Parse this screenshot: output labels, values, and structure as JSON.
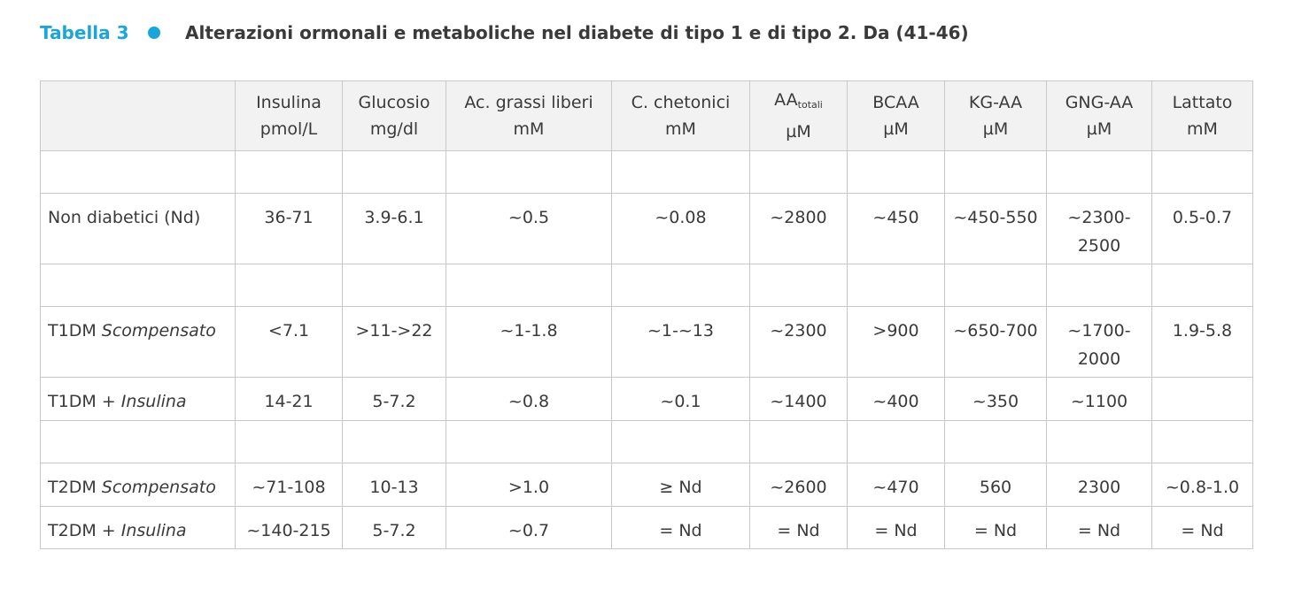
{
  "header": {
    "label": "Tabella 3",
    "title": "Alterazioni ormonali e metaboliche nel diabete di tipo 1 e di tipo 2. Da (41-46)"
  },
  "table": {
    "columns": [
      {
        "name": "Insulina",
        "unit": "pmol/L"
      },
      {
        "name": "Glucosio",
        "unit": "mg/dl"
      },
      {
        "name": "Ac. grassi liberi",
        "unit": "mM"
      },
      {
        "name": "C. chetonici",
        "unit": "mM"
      },
      {
        "name": "AA",
        "sub": "totali",
        "unit": "µM"
      },
      {
        "name": "BCAA",
        "unit": "µM"
      },
      {
        "name": "KG-AA",
        "unit": "µM"
      },
      {
        "name": "GNG-AA",
        "unit": "µM"
      },
      {
        "name": "Lattato",
        "unit": "mM"
      }
    ],
    "rows": [
      {
        "label": "Non diabetici (Nd)",
        "cells": [
          "36-71",
          "3.9-6.1",
          "~0.5",
          "~0.08",
          "~2800",
          "~450",
          "~450-550",
          "~2300-2500",
          "0.5-0.7"
        ]
      },
      {
        "label": "T1DM",
        "label_italic": "Scompensato",
        "cells": [
          "<7.1",
          ">11->22",
          "~1-1.8",
          "~1-~13",
          "~2300",
          ">900",
          "~650-700",
          "~1700-2000",
          "1.9-5.8"
        ]
      },
      {
        "label": "T1DM +",
        "label_italic": "Insulina",
        "cells": [
          "14-21",
          "5-7.2",
          "~0.8",
          "~0.1",
          "~1400",
          "~400",
          "~350",
          "~1100",
          null
        ]
      },
      {
        "label": "T2DM",
        "label_italic": "Scompensato",
        "cells": [
          "~71-108",
          "10-13",
          ">1.0",
          "≥ Nd",
          "~2600",
          "~470",
          "560",
          "2300",
          "~0.8-1.0"
        ]
      },
      {
        "label": "T2DM +",
        "label_italic": "Insulina",
        "cells": [
          "~140-215",
          "5-7.2",
          "~0.7",
          "= Nd",
          "= Nd",
          "= Nd",
          "= Nd",
          "= Nd",
          "= Nd"
        ]
      }
    ]
  }
}
